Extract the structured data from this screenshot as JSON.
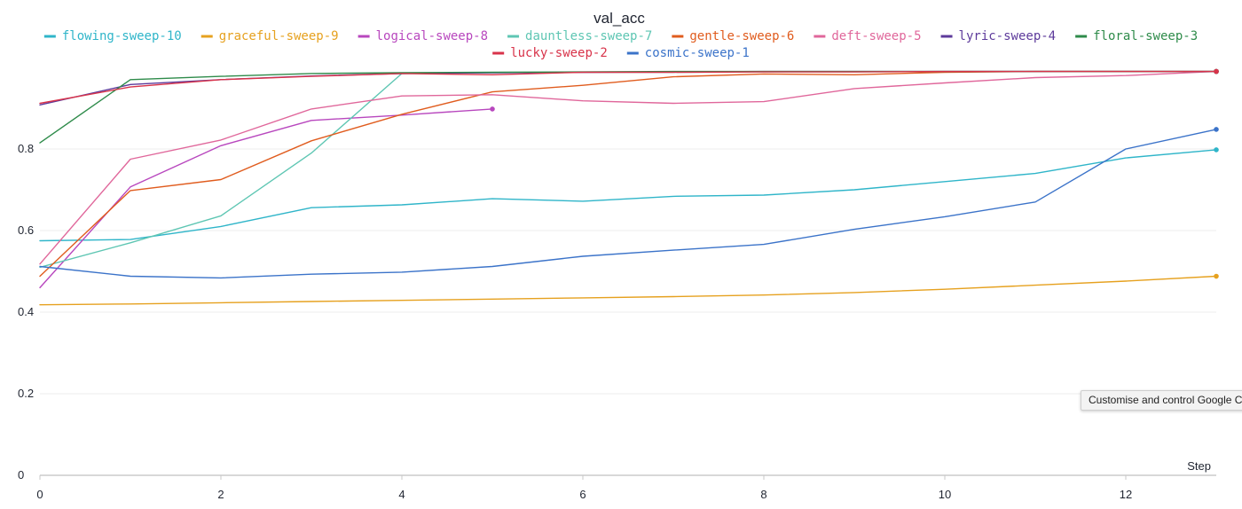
{
  "chart_data": {
    "type": "line",
    "title": "val_acc",
    "xlabel": "Step",
    "ylabel": "",
    "xlim": [
      0,
      13
    ],
    "ylim": [
      0,
      1
    ],
    "x_ticks": [
      0,
      2,
      4,
      6,
      8,
      10,
      12
    ],
    "y_ticks": [
      0,
      0.2,
      0.4,
      0.6,
      0.8
    ],
    "grid": "horizontal",
    "legend_position": "top",
    "series": [
      {
        "name": "flowing-sweep-10",
        "color": "#2fb5c9",
        "x": [
          0,
          1,
          2,
          3,
          4,
          5,
          6,
          7,
          8,
          9,
          10,
          11,
          12,
          13
        ],
        "y": [
          0.575,
          0.578,
          0.61,
          0.656,
          0.663,
          0.678,
          0.672,
          0.684,
          0.687,
          0.7,
          0.72,
          0.74,
          0.778,
          0.798
        ]
      },
      {
        "name": "graceful-sweep-9",
        "color": "#e6a11f",
        "x": [
          0,
          1,
          2,
          3,
          4,
          5,
          6,
          7,
          8,
          9,
          10,
          11,
          12,
          13
        ],
        "y": [
          0.418,
          0.42,
          0.423,
          0.426,
          0.429,
          0.432,
          0.435,
          0.438,
          0.442,
          0.448,
          0.456,
          0.466,
          0.476,
          0.488
        ]
      },
      {
        "name": "logical-sweep-8",
        "color": "#b847be",
        "x": [
          0,
          1,
          2,
          3,
          4,
          5
        ],
        "y": [
          0.46,
          0.707,
          0.808,
          0.87,
          0.883,
          0.898
        ]
      },
      {
        "name": "dauntless-sweep-7",
        "color": "#5ec6b3",
        "x": [
          0,
          1,
          2,
          3,
          4,
          5,
          6,
          7,
          8,
          9,
          10,
          11,
          12,
          13
        ],
        "y": [
          0.51,
          0.57,
          0.636,
          0.79,
          0.985,
          0.987,
          0.988,
          0.988,
          0.989,
          0.989,
          0.99,
          0.99,
          0.99,
          0.99
        ]
      },
      {
        "name": "gentle-sweep-6",
        "color": "#e05c1e",
        "x": [
          0,
          1,
          2,
          3,
          4,
          5,
          6,
          7,
          8,
          9,
          10,
          11,
          12,
          13
        ],
        "y": [
          0.488,
          0.698,
          0.725,
          0.82,
          0.885,
          0.94,
          0.956,
          0.977,
          0.984,
          0.982,
          0.988,
          0.99,
          0.99,
          0.99
        ]
      },
      {
        "name": "deft-sweep-5",
        "color": "#e0679b",
        "x": [
          0,
          1,
          2,
          3,
          4,
          5,
          6,
          7,
          8,
          9,
          10,
          11,
          12,
          13
        ],
        "y": [
          0.518,
          0.775,
          0.822,
          0.898,
          0.93,
          0.933,
          0.918,
          0.912,
          0.916,
          0.948,
          0.962,
          0.975,
          0.98,
          0.99
        ]
      },
      {
        "name": "lyric-sweep-4",
        "color": "#5d3a9b",
        "x": [
          0,
          1,
          2,
          3,
          4,
          5,
          6,
          7,
          8,
          9,
          10,
          11,
          12,
          13
        ],
        "y": [
          0.908,
          0.958,
          0.97,
          0.979,
          0.985,
          0.987,
          0.988,
          0.989,
          0.99,
          0.99,
          0.99,
          0.99,
          0.99,
          0.99
        ]
      },
      {
        "name": "floral-sweep-3",
        "color": "#2e8b4a",
        "x": [
          0,
          1,
          2,
          3,
          4,
          5,
          6,
          7,
          8,
          9,
          10,
          11,
          12,
          13
        ],
        "y": [
          0.815,
          0.97,
          0.978,
          0.985,
          0.987,
          0.988,
          0.989,
          0.99,
          0.99,
          0.99,
          0.99,
          0.99,
          0.99,
          0.99
        ]
      },
      {
        "name": "lucky-sweep-2",
        "color": "#d8334a",
        "x": [
          0,
          1,
          2,
          3,
          4,
          5,
          6,
          7,
          8,
          9,
          10,
          11,
          12,
          13
        ],
        "y": [
          0.912,
          0.952,
          0.97,
          0.978,
          0.985,
          0.982,
          0.988,
          0.988,
          0.989,
          0.989,
          0.99,
          0.99,
          0.99,
          0.99
        ]
      },
      {
        "name": "cosmic-sweep-1",
        "color": "#3b73c9",
        "x": [
          0,
          1,
          2,
          3,
          4,
          5,
          6,
          7,
          8,
          9,
          10,
          11,
          12,
          13
        ],
        "y": [
          0.512,
          0.488,
          0.484,
          0.493,
          0.498,
          0.512,
          0.537,
          0.552,
          0.566,
          0.603,
          0.634,
          0.67,
          0.8,
          0.848
        ]
      }
    ]
  },
  "tooltip": {
    "text": "Customise and control Google C"
  }
}
